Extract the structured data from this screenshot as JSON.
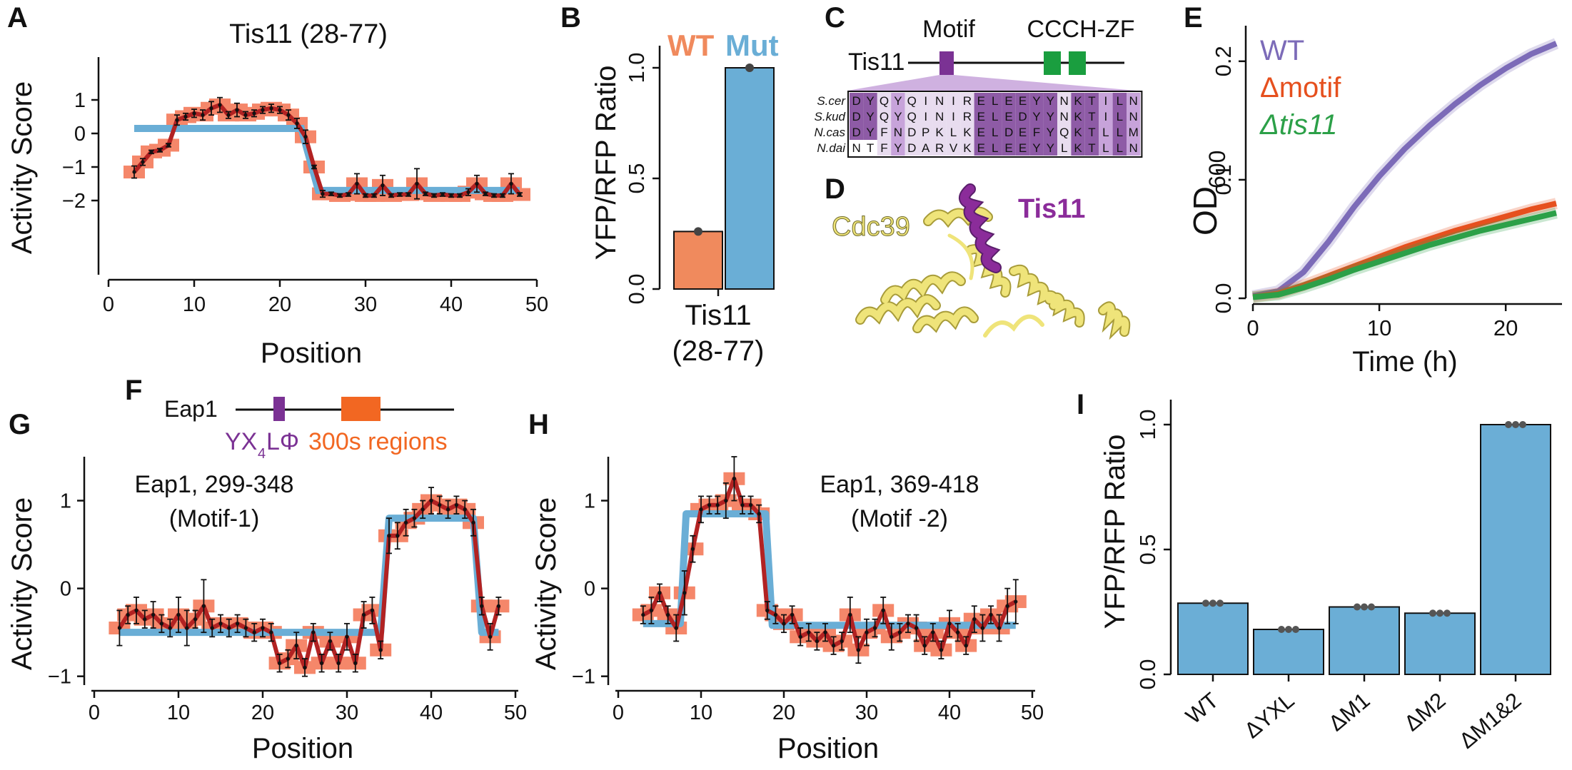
{
  "colors": {
    "wt": "#f08a5d",
    "mut": "#6aaed6",
    "bar_blue": "#6baed6",
    "fit_blue": "#6aaed6",
    "trace_red": "#b22222",
    "orange_box": "#f5876a",
    "purple": "#7b3294",
    "green": "#1a9e3f",
    "od_wt": "#7c6bb8",
    "od_motif": "#e6501e",
    "od_tis11": "#2ca048",
    "protein_yellow": "#efe47a"
  },
  "panelA": {
    "letter": "A",
    "title": "Tis11 (28-77)",
    "xlabel": "Position",
    "ylabel": "Activity Score",
    "xticks": [
      "0",
      "10",
      "20",
      "30",
      "40",
      "50"
    ],
    "yticks": [
      "1",
      "0",
      "−1",
      "−2"
    ]
  },
  "panelB": {
    "letter": "B",
    "legend_wt": "WT",
    "legend_mut": "Mut",
    "ylabel": "YFP/RFP Ratio",
    "yticks": [
      "0.0",
      "0.5",
      "1.0"
    ],
    "xcat_line1": "Tis11",
    "xcat_line2": "(28-77)"
  },
  "panelC": {
    "letter": "C",
    "motif_label": "Motif",
    "zf_label": "CCCH-ZF",
    "protein": "Tis11",
    "species": [
      "S.cer",
      "S.kud",
      "N.cas",
      "N.dai"
    ],
    "sequences": [
      "DYQYQINIRELEEYYNKTILN",
      "DYQYQINIRELEDYYNKTILN",
      "DYFNDPKLKELDEFYQKTLLM",
      "NTFYDARVKELEEYYLKTLLN"
    ]
  },
  "panelD": {
    "letter": "D",
    "label_cdc39": "Cdc39",
    "label_tis11": "Tis11"
  },
  "panelE": {
    "letter": "E",
    "legend": [
      "WT",
      "Δmotif",
      "Δtis11"
    ],
    "xlabel": "Time (h)",
    "ylabel_main": "OD",
    "ylabel_sub": "600",
    "xticks": [
      "0",
      "10",
      "20"
    ],
    "yticks": [
      "0.0",
      "0.1",
      "0.2"
    ]
  },
  "panelF": {
    "letter": "F",
    "protein": "Eap1",
    "motif_label_main": "YX",
    "motif_label_sub": "4",
    "motif_label_end": "LΦ",
    "region_label": "300s regions"
  },
  "panelG": {
    "letter": "G",
    "annot_line1": "Eap1, 299-348",
    "annot_line2": "(Motif-1)",
    "xlabel": "Position",
    "ylabel": "Activity Score",
    "xticks": [
      "0",
      "10",
      "20",
      "30",
      "40",
      "50"
    ],
    "yticks": [
      "1",
      "0",
      "−1"
    ]
  },
  "panelH": {
    "letter": "H",
    "annot_line1": "Eap1, 369-418",
    "annot_line2": "(Motif -2)",
    "xlabel": "Position",
    "ylabel": "Activity Score",
    "xticks": [
      "0",
      "10",
      "20",
      "30",
      "40",
      "50"
    ],
    "yticks": [
      "1",
      "0",
      "−1"
    ]
  },
  "panelI": {
    "letter": "I",
    "ylabel": "YFP/RFP Ratio",
    "yticks": [
      "0.0",
      "0.5",
      "1.0"
    ],
    "categories": [
      "WT",
      "ΔYXL",
      "ΔM1",
      "ΔM2",
      "ΔM1&2"
    ]
  },
  "chart_data": [
    {
      "id": "A",
      "type": "line",
      "title": "Tis11 (28-77)",
      "xlabel": "Position",
      "ylabel": "Activity Score",
      "xlim": [
        0,
        50
      ],
      "ylim": [
        -2.2,
        1.3
      ],
      "x": [
        3,
        4,
        5,
        6,
        7,
        8,
        9,
        10,
        11,
        12,
        13,
        14,
        15,
        16,
        17,
        18,
        19,
        20,
        21,
        22,
        23,
        24,
        25,
        26,
        27,
        28,
        29,
        30,
        31,
        32,
        33,
        34,
        35,
        36,
        37,
        38,
        39,
        40,
        41,
        42,
        43,
        44,
        45,
        46,
        47,
        48
      ],
      "y": [
        -1.15,
        -0.85,
        -0.55,
        -0.5,
        -0.35,
        0.4,
        0.5,
        0.6,
        0.55,
        0.75,
        0.85,
        0.55,
        0.7,
        0.55,
        0.6,
        0.7,
        0.75,
        0.7,
        0.55,
        0.3,
        -0.1,
        -1.0,
        -1.8,
        -1.8,
        -1.85,
        -1.82,
        -1.5,
        -1.85,
        -1.85,
        -1.55,
        -1.85,
        -1.82,
        -1.82,
        -1.5,
        -1.8,
        -1.85,
        -1.82,
        -1.85,
        -1.85,
        -1.75,
        -1.5,
        -1.8,
        -1.85,
        -1.85,
        -1.5,
        -1.82
      ],
      "err": [
        0.18,
        0.1,
        0.05,
        0.05,
        0.05,
        0.15,
        0.1,
        0.12,
        0.15,
        0.2,
        0.22,
        0.1,
        0.2,
        0.1,
        0.1,
        0.1,
        0.12,
        0.1,
        0.15,
        0.15,
        0.2,
        0.05,
        0.1,
        0.05,
        0.05,
        0.05,
        0.3,
        0.05,
        0.05,
        0.3,
        0.05,
        0.05,
        0.05,
        0.45,
        0.05,
        0.05,
        0.05,
        0.05,
        0.05,
        0.1,
        0.25,
        0.05,
        0.05,
        0.05,
        0.3,
        0.05
      ],
      "fit": {
        "x": [
          3,
          22.5,
          24.5,
          48
        ],
        "y": [
          0.15,
          0.15,
          -1.7,
          -1.7
        ]
      }
    },
    {
      "id": "B",
      "type": "bar",
      "ylabel": "YFP/RFP Ratio",
      "ylim": [
        0,
        1.1
      ],
      "categories": [
        "WT",
        "Mut"
      ],
      "values": [
        0.26,
        1.0
      ]
    },
    {
      "id": "E",
      "type": "line",
      "xlabel": "Time (h)",
      "ylabel": "OD600",
      "xlim": [
        0,
        24
      ],
      "ylim": [
        0,
        0.23
      ],
      "series": [
        {
          "name": "WT",
          "x": [
            0,
            2,
            4,
            6,
            8,
            10,
            12,
            14,
            16,
            18,
            20,
            22,
            24
          ],
          "y": [
            0.002,
            0.006,
            0.022,
            0.048,
            0.077,
            0.103,
            0.126,
            0.146,
            0.164,
            0.18,
            0.194,
            0.206,
            0.215
          ]
        },
        {
          "name": "Δmotif",
          "x": [
            0,
            2,
            4,
            6,
            8,
            10,
            12,
            14,
            16,
            18,
            20,
            22,
            24
          ],
          "y": [
            0.001,
            0.004,
            0.011,
            0.019,
            0.027,
            0.035,
            0.043,
            0.05,
            0.057,
            0.063,
            0.069,
            0.075,
            0.08
          ]
        },
        {
          "name": "Δtis11",
          "x": [
            0,
            2,
            4,
            6,
            8,
            10,
            12,
            14,
            16,
            18,
            20,
            22,
            24
          ],
          "y": [
            0.001,
            0.003,
            0.009,
            0.016,
            0.024,
            0.031,
            0.038,
            0.045,
            0.051,
            0.057,
            0.062,
            0.067,
            0.072
          ]
        }
      ]
    },
    {
      "id": "G",
      "type": "line",
      "xlabel": "Position",
      "ylabel": "Activity Score",
      "xlim": [
        0,
        50
      ],
      "ylim": [
        -1.1,
        1.5
      ],
      "x": [
        3,
        4,
        5,
        6,
        7,
        8,
        9,
        10,
        11,
        12,
        13,
        14,
        15,
        16,
        17,
        18,
        19,
        20,
        21,
        22,
        23,
        24,
        25,
        26,
        27,
        28,
        29,
        30,
        31,
        32,
        33,
        34,
        35,
        36,
        37,
        38,
        39,
        40,
        41,
        42,
        43,
        44,
        45,
        46,
        47,
        48
      ],
      "y": [
        -0.45,
        -0.3,
        -0.25,
        -0.35,
        -0.3,
        -0.4,
        -0.45,
        -0.3,
        -0.45,
        -0.35,
        -0.2,
        -0.45,
        -0.4,
        -0.45,
        -0.4,
        -0.45,
        -0.5,
        -0.45,
        -0.5,
        -0.85,
        -0.8,
        -0.65,
        -0.9,
        -0.5,
        -0.85,
        -0.6,
        -0.85,
        -0.55,
        -0.85,
        -0.3,
        -0.25,
        -0.7,
        0.6,
        0.6,
        0.75,
        0.8,
        0.9,
        1.0,
        0.95,
        0.9,
        0.95,
        0.9,
        0.75,
        -0.2,
        -0.55,
        -0.2
      ],
      "err": [
        0.2,
        0.1,
        0.15,
        0.1,
        0.15,
        0.1,
        0.1,
        0.2,
        0.2,
        0.1,
        0.3,
        0.1,
        0.1,
        0.1,
        0.1,
        0.1,
        0.1,
        0.1,
        0.1,
        0.1,
        0.1,
        0.15,
        0.1,
        0.1,
        0.1,
        0.1,
        0.1,
        0.15,
        0.1,
        0.15,
        0.15,
        0.1,
        0.2,
        0.15,
        0.15,
        0.1,
        0.1,
        0.15,
        0.1,
        0.1,
        0.1,
        0.1,
        0.15,
        0.1,
        0.15,
        0.1
      ],
      "fit": {
        "x": [
          3,
          34,
          35,
          45,
          46,
          48
        ],
        "y": [
          -0.5,
          -0.5,
          0.8,
          0.8,
          -0.5,
          -0.5
        ]
      }
    },
    {
      "id": "H",
      "type": "line",
      "xlabel": "Position",
      "ylabel": "Activity Score",
      "xlim": [
        0,
        50
      ],
      "ylim": [
        -1.1,
        1.5
      ],
      "x": [
        3,
        4,
        5,
        6,
        7,
        8,
        9,
        10,
        11,
        12,
        13,
        14,
        15,
        16,
        17,
        18,
        19,
        20,
        21,
        22,
        23,
        24,
        25,
        26,
        27,
        28,
        29,
        30,
        31,
        32,
        33,
        34,
        35,
        36,
        37,
        38,
        39,
        40,
        41,
        42,
        43,
        44,
        45,
        46,
        47,
        48
      ],
      "y": [
        -0.3,
        -0.25,
        -0.05,
        -0.3,
        -0.45,
        -0.05,
        0.45,
        0.9,
        0.95,
        0.95,
        1.0,
        1.25,
        0.95,
        0.95,
        0.85,
        -0.25,
        -0.3,
        -0.4,
        -0.3,
        -0.55,
        -0.5,
        -0.6,
        -0.5,
        -0.65,
        -0.6,
        -0.3,
        -0.7,
        -0.5,
        -0.45,
        -0.25,
        -0.55,
        -0.5,
        -0.4,
        -0.45,
        -0.65,
        -0.5,
        -0.7,
        -0.4,
        -0.5,
        -0.65,
        -0.35,
        -0.45,
        -0.3,
        -0.45,
        -0.2,
        -0.15
      ],
      "err": [
        0.1,
        0.15,
        0.1,
        0.1,
        0.15,
        0.25,
        0.15,
        0.15,
        0.1,
        0.1,
        0.2,
        0.25,
        0.1,
        0.1,
        0.1,
        0.1,
        0.1,
        0.1,
        0.1,
        0.1,
        0.1,
        0.1,
        0.1,
        0.1,
        0.1,
        0.2,
        0.15,
        0.15,
        0.1,
        0.15,
        0.15,
        0.1,
        0.1,
        0.15,
        0.1,
        0.1,
        0.1,
        0.15,
        0.1,
        0.1,
        0.15,
        0.15,
        0.1,
        0.15,
        0.2,
        0.25
      ],
      "fit": {
        "x": [
          3,
          7.5,
          8.2,
          17.8,
          18.6,
          48
        ],
        "y": [
          -0.4,
          -0.4,
          0.85,
          0.85,
          -0.42,
          -0.42
        ]
      }
    },
    {
      "id": "I",
      "type": "bar",
      "ylabel": "YFP/RFP Ratio",
      "ylim": [
        0,
        1.1
      ],
      "categories": [
        "WT",
        "ΔYXL",
        "ΔM1",
        "ΔM2",
        "ΔM1&2"
      ],
      "values": [
        0.285,
        0.18,
        0.27,
        0.245,
        1.0
      ]
    }
  ]
}
